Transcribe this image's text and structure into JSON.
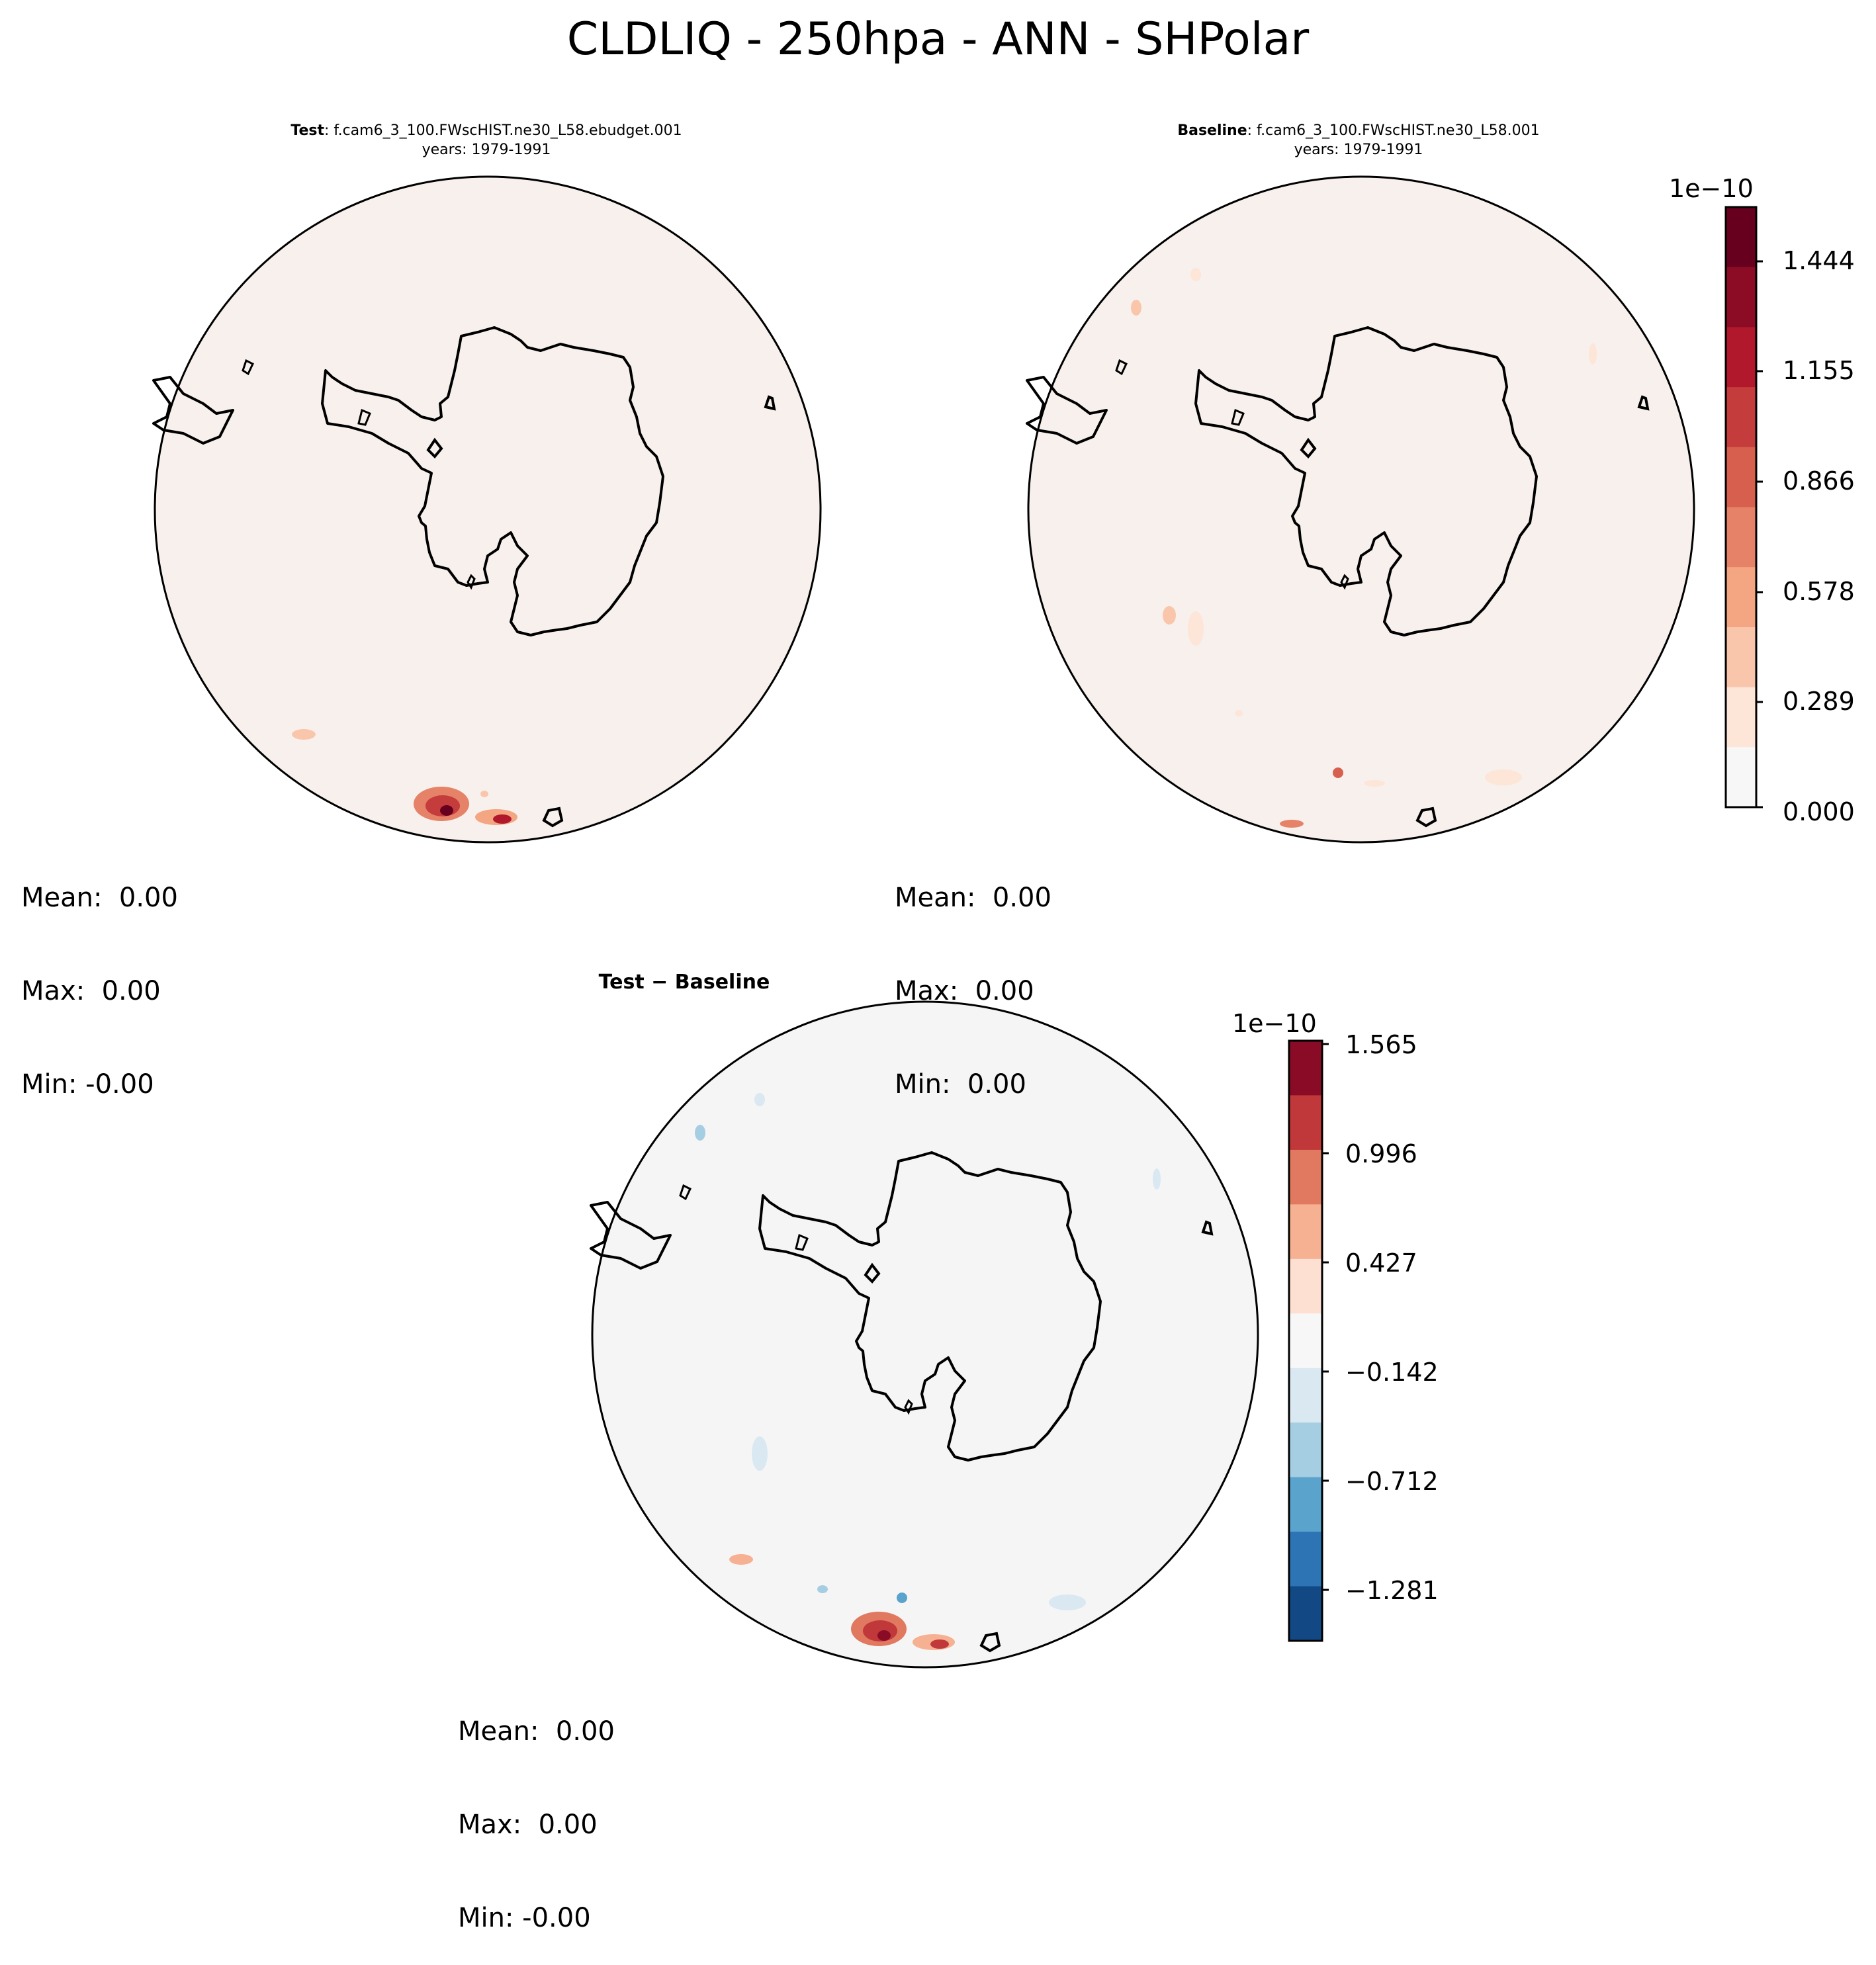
{
  "suptitle": "CLDLIQ - 250hpa - ANN - SHPolar",
  "panels": {
    "test": {
      "label": "Test",
      "case": ": f.cam6_3_100.FWscHIST.ne30_L58.ebudget.001",
      "years": "years: 1979-1991",
      "stats": [
        "Mean:  0.00",
        "Max:  0.00",
        "Min: -0.00"
      ]
    },
    "baseline": {
      "label": "Baseline",
      "case": ": f.cam6_3_100.FWscHIST.ne30_L58.001",
      "years": "years: 1979-1991",
      "stats": [
        "Mean:  0.00",
        "Max:  0.00",
        "Min:  0.00"
      ]
    },
    "diff": {
      "label": "Test − Baseline",
      "stats": [
        "Mean:  0.00",
        "Max:  0.00",
        "Min: -0.00"
      ]
    }
  },
  "colorbars": {
    "main": {
      "exponent": "1e−10",
      "ticks": [
        "1.444",
        "1.155",
        "0.866",
        "0.578",
        "0.289",
        "0.000"
      ],
      "colors": [
        "#67001f",
        "#8d0c25",
        "#b2182b",
        "#c43c3c",
        "#d6604d",
        "#e58267",
        "#f4a582",
        "#f9c6ac",
        "#fde5d8",
        "#f7f7f7"
      ]
    },
    "diff": {
      "exponent": "1e−10",
      "ticks": [
        "1.565",
        "0.996",
        "0.427",
        "−0.142",
        "−0.712",
        "−1.281"
      ],
      "colors": [
        "#8a0b25",
        "#c0383a",
        "#e17860",
        "#f6b092",
        "#fde0d2",
        "#f7f7f7",
        "#dae8f2",
        "#a6cee3",
        "#5aa3cd",
        "#2c74b4",
        "#124984"
      ]
    }
  },
  "colors": {
    "field_main": "#f7f0ed",
    "field_diff": "#f5f5f5",
    "coast": "#000000"
  },
  "chart_data": [
    {
      "type": "heatmap",
      "title": "Test : f.cam6_3_100.FWscHIST.ne30_L58.ebudget.001 years: 1979-1991",
      "variable": "CLDLIQ",
      "level": "250hpa",
      "season": "ANN",
      "region": "SHPolar",
      "color_scale": "1e-10",
      "levels": [
        0.0,
        0.144,
        0.289,
        0.433,
        0.578,
        0.722,
        0.866,
        1.011,
        1.155,
        1.3,
        1.444,
        1.589
      ],
      "mean": 0.0,
      "max": 0.0,
      "min": -0.0
    },
    {
      "type": "heatmap",
      "title": "Baseline : f.cam6_3_100.FWscHIST.ne30_L58.001 years: 1979-1991",
      "variable": "CLDLIQ",
      "level": "250hpa",
      "season": "ANN",
      "region": "SHPolar",
      "color_scale": "1e-10",
      "levels": [
        0.0,
        0.144,
        0.289,
        0.433,
        0.578,
        0.722,
        0.866,
        1.011,
        1.155,
        1.3,
        1.444,
        1.589
      ],
      "mean": 0.0,
      "max": 0.0,
      "min": 0.0
    },
    {
      "type": "heatmap",
      "title": "Test − Baseline",
      "variable": "CLDLIQ",
      "level": "250hpa",
      "season": "ANN",
      "region": "SHPolar",
      "color_scale": "1e-10",
      "levels": [
        -1.566,
        -1.281,
        -0.996,
        -0.712,
        -0.427,
        -0.142,
        0.142,
        0.427,
        0.712,
        0.996,
        1.281,
        1.565
      ],
      "mean": 0.0,
      "max": 0.0,
      "min": -0.0
    }
  ]
}
